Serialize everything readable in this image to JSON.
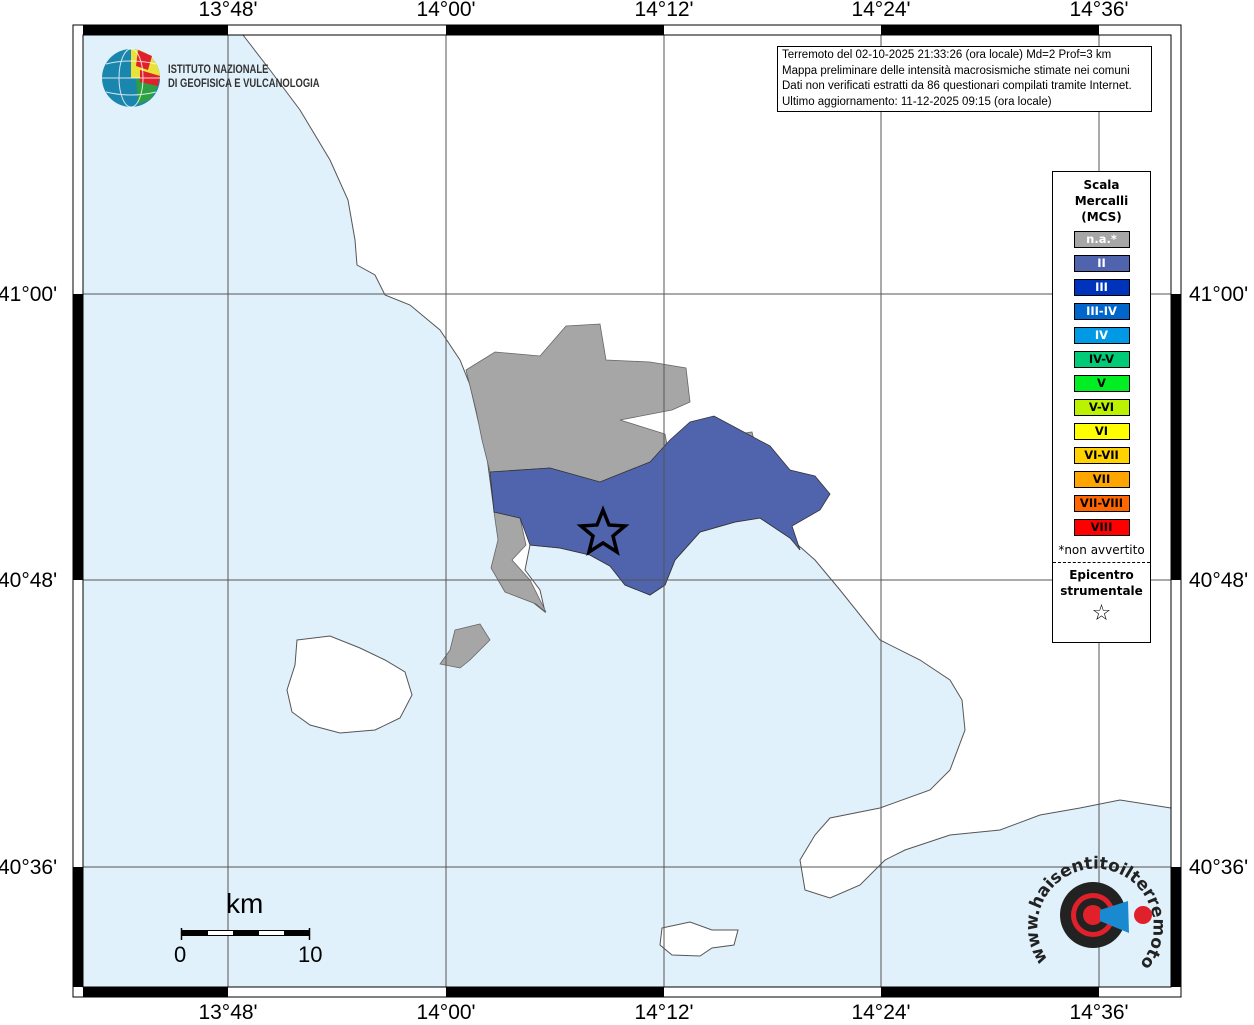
{
  "map": {
    "sea_color": "#e1f1fb",
    "land_color": "#ffffff",
    "na_color": "#a6a6a6",
    "intensity_II_color": "#5064ae"
  },
  "axes": {
    "longitude_ticks": [
      "13°48'",
      "14°00'",
      "14°12'",
      "14°24'",
      "14°36'"
    ],
    "latitude_ticks": [
      "41°00'",
      "40°48'",
      "40°36'"
    ]
  },
  "logo": {
    "institute_line1": "ISTITUTO NAZIONALE",
    "institute_line2": "DI GEOFISICA E VULCANOLOGIA"
  },
  "info": {
    "line1": "Terremoto del 02-10-2025 21:33:26 (ora locale) Md=2 Prof=3 km",
    "line2": "Mappa preliminare delle intensità macrosismiche stimate nei comuni",
    "line3": "Dati non verificati estratti da 86 questionari compilati tramite Internet.",
    "line4": "Ultimo aggiornamento: 11-12-2025 09:15 (ora locale)"
  },
  "legend": {
    "title_line1": "Scala",
    "title_line2": "Mercalli",
    "title_line3": "(MCS)",
    "items": [
      {
        "label": "n.a.*",
        "color": "#a6a6a6",
        "text_color": "#ffffff"
      },
      {
        "label": "II",
        "color": "#5064ae",
        "text_color": "#ffffff"
      },
      {
        "label": "III",
        "color": "#0033bb",
        "text_color": "#ffffff"
      },
      {
        "label": "III-IV",
        "color": "#0066cc",
        "text_color": "#ffffff"
      },
      {
        "label": "IV",
        "color": "#0099e6",
        "text_color": "#ffffff"
      },
      {
        "label": "IV-V",
        "color": "#00cc77",
        "text_color": "#000000"
      },
      {
        "label": "V",
        "color": "#00ee22",
        "text_color": "#000000"
      },
      {
        "label": "V-VI",
        "color": "#bbf200",
        "text_color": "#000000"
      },
      {
        "label": "VI",
        "color": "#ffff00",
        "text_color": "#000000"
      },
      {
        "label": "VI-VII",
        "color": "#ffd200",
        "text_color": "#000000"
      },
      {
        "label": "VII",
        "color": "#ffa500",
        "text_color": "#000000"
      },
      {
        "label": "VII-VIII",
        "color": "#ff6600",
        "text_color": "#000000"
      },
      {
        "label": "VIII",
        "color": "#ff0000",
        "text_color": "#000000"
      }
    ],
    "note": "*non avvertito",
    "epicenter_line1": "Epicentro",
    "epicenter_line2": "strumentale",
    "epicenter_symbol": "☆"
  },
  "scale_bar": {
    "unit": "km",
    "start": "0",
    "end": "10"
  },
  "hsit_logo": {
    "text": "www.haisentitoilterremoto.it"
  }
}
